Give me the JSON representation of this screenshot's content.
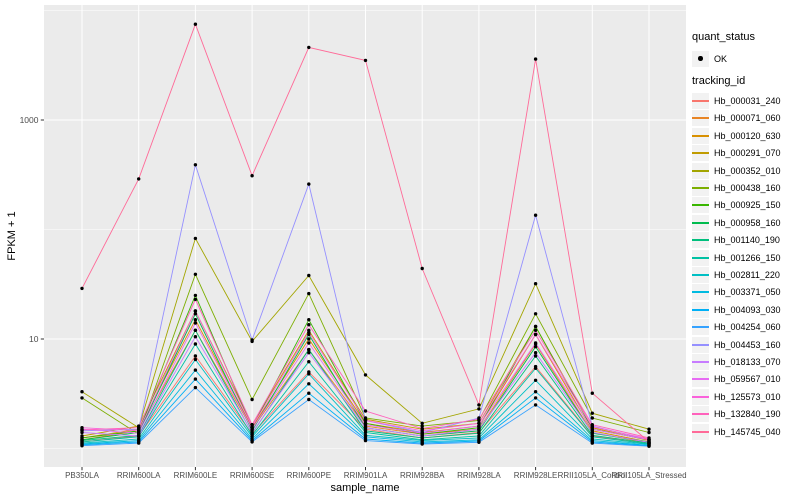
{
  "style": {
    "panel_bg": "#EBEBEB",
    "grid_color": "#FFFFFF",
    "tick_color": "#333333",
    "tick_label_color": "#4D4D4D",
    "axis_title_color": "#000000",
    "legend_key_bg": "#F2F2F2",
    "point_color": "#000000"
  },
  "legend": {
    "quant_status": {
      "title": "quant_status",
      "items": [
        {
          "label": "OK",
          "symbol": "black-point"
        }
      ]
    },
    "tracking_id": {
      "title": "tracking_id"
    }
  },
  "chart_data": {
    "type": "line",
    "title": "",
    "xlabel": "sample_name",
    "ylabel": "FPKM + 1",
    "y_scale": "log10",
    "ylim": [
      0.8,
      10000
    ],
    "grid": "on",
    "legend_position": "right",
    "point_shape": "filled-circle",
    "x_categories": [
      "PB350LA",
      "RRIM600LA",
      "RRIM600LE",
      "RRIM600SE",
      "RRIM600PE",
      "RRIM901LA",
      "RRIM928BA",
      "RRIM928LA",
      "RRIM928LE",
      "RRII105LA_Control",
      "RRII105LA_Stressed"
    ],
    "y_ticks": [
      {
        "value": 10,
        "label": "10"
      },
      {
        "value": 1000,
        "label": "1000"
      }
    ],
    "y_minor_gridlines": [
      1,
      100,
      10000
    ],
    "series": [
      {
        "name": "Hb_000031_240",
        "color": "#F8766D",
        "values": [
          1.15,
          1.3,
          7,
          1.35,
          5,
          1.5,
          1.25,
          1.4,
          5.6,
          1.3,
          1.1
        ]
      },
      {
        "name": "Hb_000071_060",
        "color": "#E88526",
        "values": [
          1.2,
          1.45,
          12,
          1.5,
          8,
          1.6,
          1.35,
          1.5,
          9,
          1.4,
          1.12
        ]
      },
      {
        "name": "Hb_000120_630",
        "color": "#D89000",
        "values": [
          1.25,
          1.5,
          15,
          1.55,
          10,
          1.7,
          1.4,
          1.6,
          11,
          1.45,
          1.15
        ]
      },
      {
        "name": "Hb_000291_070",
        "color": "#C09B00",
        "values": [
          1.3,
          1.6,
          18,
          1.65,
          12,
          1.85,
          1.5,
          1.7,
          13,
          1.55,
          1.18
        ]
      },
      {
        "name": "Hb_000352_010",
        "color": "#A3A500",
        "values": [
          3.3,
          1.55,
          83,
          9.5,
          38,
          4.7,
          1.7,
          2.3,
          32,
          2.1,
          1.5
        ]
      },
      {
        "name": "Hb_000438_160",
        "color": "#7CAE00",
        "values": [
          2.9,
          1.35,
          39,
          2.8,
          26,
          1.9,
          1.6,
          1.8,
          17,
          1.9,
          1.4
        ]
      },
      {
        "name": "Hb_000925_150",
        "color": "#39B600",
        "values": [
          1.25,
          1.45,
          25,
          1.55,
          15,
          1.7,
          1.35,
          1.55,
          13,
          1.5,
          1.2
        ]
      },
      {
        "name": "Hb_000958_160",
        "color": "#00BB4E",
        "values": [
          1.2,
          1.4,
          17,
          1.45,
          11,
          1.55,
          1.3,
          1.45,
          8.5,
          1.38,
          1.15
        ]
      },
      {
        "name": "Hb_001140_190",
        "color": "#00BF7D",
        "values": [
          1.18,
          1.32,
          12,
          1.38,
          8,
          1.45,
          1.25,
          1.38,
          7,
          1.32,
          1.12
        ]
      },
      {
        "name": "Hb_001266_150",
        "color": "#00C1A3",
        "values": [
          1.15,
          1.28,
          9,
          1.32,
          6.2,
          1.4,
          1.2,
          1.3,
          5.4,
          1.28,
          1.1
        ]
      },
      {
        "name": "Hb_002811_220",
        "color": "#00BFC4",
        "values": [
          1.12,
          1.22,
          6.5,
          1.28,
          4.8,
          1.32,
          1.18,
          1.25,
          4.2,
          1.22,
          1.09
        ]
      },
      {
        "name": "Hb_003371_050",
        "color": "#00BAE0",
        "values": [
          1.1,
          1.18,
          5.2,
          1.22,
          3.9,
          1.28,
          1.15,
          1.2,
          3.3,
          1.18,
          1.07
        ]
      },
      {
        "name": "Hb_004093_030",
        "color": "#00B0F6",
        "values": [
          1.08,
          1.15,
          4.3,
          1.18,
          3.2,
          1.22,
          1.12,
          1.17,
          2.9,
          1.15,
          1.06
        ]
      },
      {
        "name": "Hb_004254_060",
        "color": "#35A2FF",
        "values": [
          1.06,
          1.12,
          3.6,
          1.15,
          2.8,
          1.18,
          1.1,
          1.14,
          2.5,
          1.12,
          1.05
        ]
      },
      {
        "name": "Hb_004453_160",
        "color": "#9590FF",
        "values": [
          1.45,
          1.5,
          390,
          9.8,
          260,
          1.8,
          1.4,
          1.9,
          135,
          1.6,
          1.2
        ]
      },
      {
        "name": "Hb_018133_070",
        "color": "#C77CFF",
        "values": [
          1.4,
          1.3,
          10.5,
          1.4,
          7.5,
          1.55,
          1.3,
          1.5,
          7.5,
          1.4,
          1.14
        ]
      },
      {
        "name": "Hb_059567_010",
        "color": "#E76BF3",
        "values": [
          1.5,
          1.38,
          14,
          1.5,
          9.2,
          1.65,
          1.38,
          1.6,
          9.2,
          1.5,
          1.2
        ]
      },
      {
        "name": "Hb_125573_010",
        "color": "#FA62DB",
        "values": [
          1.55,
          1.45,
          18,
          1.58,
          11.5,
          1.8,
          1.45,
          1.7,
          11,
          1.58,
          1.22
        ]
      },
      {
        "name": "Hb_132840_190",
        "color": "#FF62BC",
        "values": [
          1.48,
          1.55,
          23,
          1.65,
          13.5,
          2.2,
          1.52,
          1.85,
          12,
          1.65,
          1.25
        ]
      },
      {
        "name": "Hb_145745_040",
        "color": "#FF6A98",
        "values": [
          29,
          290,
          7500,
          310,
          4600,
          3500,
          44,
          2.5,
          3600,
          3.2,
          1.15
        ]
      }
    ]
  }
}
